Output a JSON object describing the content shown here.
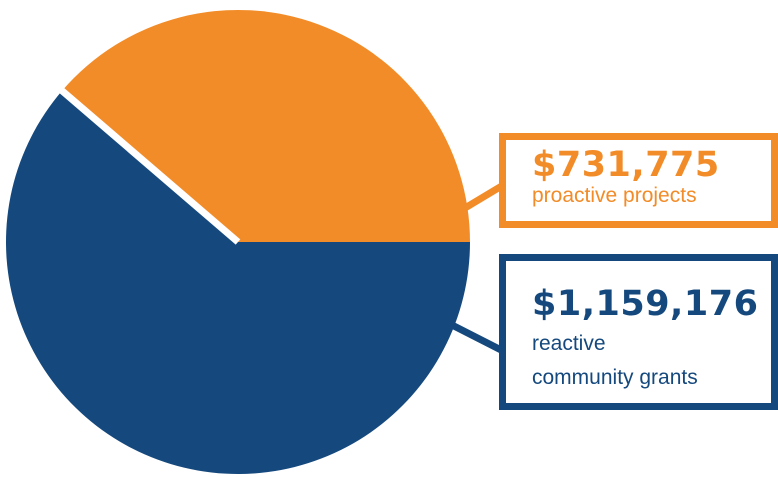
{
  "chart_data": {
    "type": "pie",
    "title": "",
    "slices": [
      {
        "value": 731775,
        "amount_label": "$731,775",
        "label": "proactive projects",
        "color": "#F28C28"
      },
      {
        "value": 1159176,
        "amount_label": "$1,159,176",
        "label": "reactive community grants",
        "color": "#15497E"
      }
    ],
    "legend": "callout boxes on the right",
    "separator_color": "#ffffff"
  },
  "callouts": {
    "proactive": {
      "amount": "$731,775",
      "label": "proactive projects"
    },
    "reactive": {
      "amount": "$1,159,176",
      "label_line1": "reactive",
      "label_line2": "community grants"
    }
  }
}
